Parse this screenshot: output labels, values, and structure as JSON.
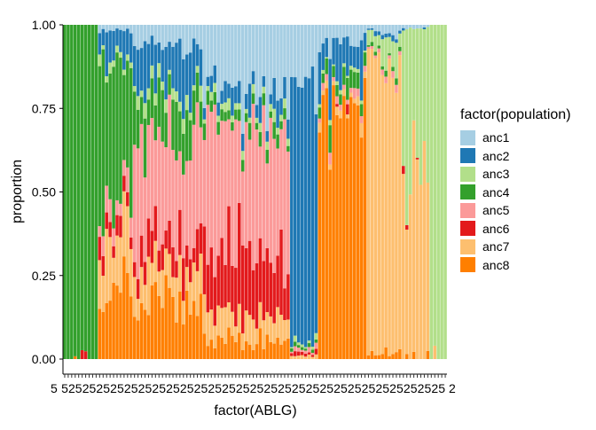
{
  "chart_data": {
    "type": "stacked_bar",
    "xlabel": "factor(ABLG)",
    "ylabel": "proportion",
    "ylim": [
      0,
      1
    ],
    "yticks": [
      "0.00",
      "0.25",
      "0.50",
      "0.75",
      "1.00"
    ],
    "n_bars": 120,
    "legend": {
      "title": "factor(population)",
      "placement": "right"
    },
    "series": [
      {
        "name": "anc1",
        "color": "#a6cee3"
      },
      {
        "name": "anc2",
        "color": "#1f78b4"
      },
      {
        "name": "anc3",
        "color": "#b2df8a"
      },
      {
        "name": "anc4",
        "color": "#33a02c"
      },
      {
        "name": "anc5",
        "color": "#fb9a99"
      },
      {
        "name": "anc6",
        "color": "#e31a1c"
      },
      {
        "name": "anc7",
        "color": "#fdbf6f"
      },
      {
        "name": "anc8",
        "color": "#ff7f00"
      }
    ],
    "x_tick_labels": [
      "5",
      "2"
    ],
    "bar_groups": [
      {
        "count": 10,
        "profile": [
          0,
          0,
          0,
          1,
          0,
          0,
          0,
          0
        ]
      },
      {
        "count": 10,
        "profile": [
          0.02,
          0.08,
          0.02,
          0.45,
          0.05,
          0.05,
          0.13,
          0.2
        ]
      },
      {
        "count": 20,
        "profile": [
          0.06,
          0.12,
          0.03,
          0.12,
          0.3,
          0.09,
          0.11,
          0.17
        ]
      },
      {
        "count": 25,
        "profile": [
          0.23,
          0.05,
          0.02,
          0.03,
          0.38,
          0.17,
          0.07,
          0.05
        ]
      },
      {
        "count": 8,
        "profile": [
          0.15,
          0.8,
          0.01,
          0.01,
          0.01,
          0.01,
          0.01,
          0.0
        ]
      },
      {
        "count": 14,
        "profile": [
          0.05,
          0.1,
          0.01,
          0.04,
          0.02,
          0.0,
          0.02,
          0.76
        ]
      },
      {
        "count": 10,
        "profile": [
          0.02,
          0.01,
          0.05,
          0.01,
          0.01,
          0.0,
          0.88,
          0.02
        ]
      },
      {
        "count": 8,
        "profile": [
          0.01,
          0.0,
          0.45,
          0.0,
          0.0,
          0.0,
          0.54,
          0.0
        ]
      },
      {
        "count": 5,
        "profile": [
          0.0,
          0.0,
          1.0,
          0.0,
          0.0,
          0.0,
          0.0,
          0.0
        ]
      }
    ]
  }
}
